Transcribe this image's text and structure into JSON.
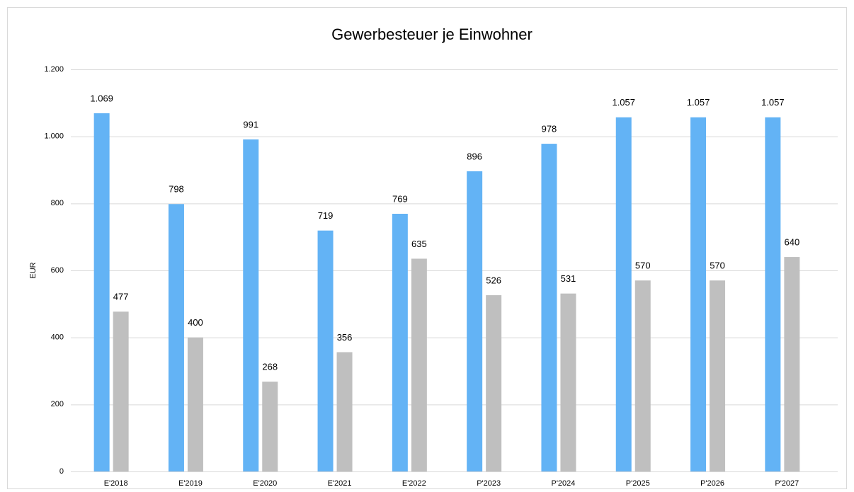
{
  "chart_data": {
    "type": "bar",
    "title": "Gewerbesteuer je Einwohner",
    "y_label": "EUR",
    "categories": [
      "E'2018",
      "E'2019",
      "E'2020",
      "E'2021",
      "E'2022",
      "P'2023",
      "P'2024",
      "P'2025",
      "P'2026",
      "P'2027"
    ],
    "series": [
      {
        "color": "#63b3f5",
        "values": [
          1069,
          798,
          991,
          719,
          769,
          896,
          978,
          1057,
          1057,
          1057
        ],
        "value_labels": [
          "1.069",
          "798",
          "991",
          "719",
          "769",
          "896",
          "978",
          "1.057",
          "1.057",
          "1.057"
        ]
      },
      {
        "color": "#bfbfbf",
        "values": [
          477,
          400,
          268,
          356,
          635,
          526,
          531,
          570,
          570,
          640
        ]
      }
    ],
    "ylim": [
      0,
      1200
    ],
    "yticks": [
      0,
      200,
      400,
      600,
      800,
      {
        "value": 1000,
        "label": "1.000"
      },
      {
        "value": 1200,
        "label": "1.200"
      }
    ],
    "grid": true
  }
}
